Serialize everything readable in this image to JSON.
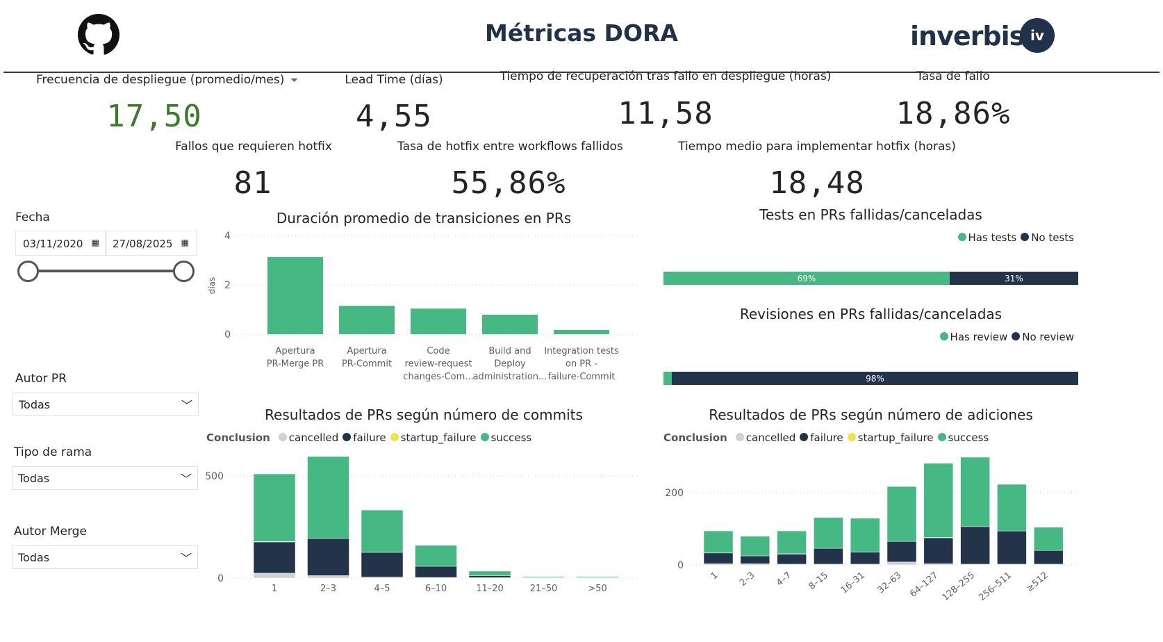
{
  "header": {
    "title": "Métricas DORA",
    "logo_github": "github-logo",
    "logo_brand": "inverbis.",
    "logo_badge": "iv"
  },
  "kpis": [
    {
      "label": "Frecuencia de despliegue (promedio/mes)",
      "value": "17,50",
      "color": "#3a7a2a"
    },
    {
      "label": "Lead Time (días)",
      "value": "4,55"
    },
    {
      "label": "Tiempo de recuperación tras fallo en despliegue (horas)",
      "value": "11,58"
    },
    {
      "label": "Tasa de fallo",
      "value": "18,86%"
    },
    {
      "label": "Fallos que requieren hotfix",
      "value": "81"
    },
    {
      "label": "Tasa de hotfix entre workflows fallidos",
      "value": "55,86%"
    },
    {
      "label": "Tiempo medio para implementar hotfix (horas)",
      "value": "18,48"
    }
  ],
  "filters": {
    "fecha": {
      "label": "Fecha",
      "start": "03/11/2020",
      "end": "27/08/2025"
    },
    "autor_pr": {
      "label": "Autor PR",
      "value": "Todas"
    },
    "tipo_rama": {
      "label": "Tipo de rama",
      "value": "Todas"
    },
    "autor_merge": {
      "label": "Autor Merge",
      "value": "Todas"
    }
  },
  "colors": {
    "success": "#45b884",
    "failure": "#22334a",
    "cancelled": "#cfd2d4",
    "startup_failure": "#f2e24a"
  },
  "chart_data": [
    {
      "type": "bar",
      "title": "Duración promedio de transiciones en PRs",
      "ylabel": "días",
      "ylim": [
        0,
        4
      ],
      "yticks": [
        "0",
        "2",
        "4"
      ],
      "categories": [
        [
          "Apertura",
          "PR-Merge PR"
        ],
        [
          "Apertura",
          "PR-Commit"
        ],
        [
          "Code",
          "review-request",
          "changes-Com..."
        ],
        [
          "Build and",
          "Deploy",
          "administration..."
        ],
        [
          "Integration tests",
          "on PR -",
          "failure-Commit"
        ]
      ],
      "values": [
        3.13,
        1.15,
        1.04,
        0.79,
        0.17
      ]
    },
    {
      "type": "bar",
      "stacked": "100%",
      "title": "Tests en PRs fallidas/canceladas",
      "legend": [
        "Has tests",
        "No tests"
      ],
      "values": [
        69,
        31
      ],
      "labels": [
        "69%",
        "31%"
      ]
    },
    {
      "type": "bar",
      "stacked": "100%",
      "title": "Revisiones en PRs fallidas/canceladas",
      "legend": [
        "Has review",
        "No review"
      ],
      "values": [
        2,
        98
      ],
      "labels": [
        "",
        "98%"
      ]
    },
    {
      "type": "bar",
      "stacked": true,
      "title": "Resultados de PRs según número de commits",
      "legend_title": "Conclusion",
      "ylim": [
        0,
        600
      ],
      "yticks": [
        "0",
        "500"
      ],
      "categories": [
        "1",
        "2–3",
        "4–5",
        "6–10",
        "11–20",
        "21–50",
        ">50"
      ],
      "series": [
        {
          "name": "cancelled",
          "values": [
            24,
            12,
            5,
            3,
            2,
            1,
            1
          ]
        },
        {
          "name": "failure",
          "values": [
            153,
            182,
            121,
            55,
            10,
            1,
            1
          ]
        },
        {
          "name": "startup_failure",
          "values": [
            2,
            0,
            0,
            0,
            0,
            0,
            0
          ]
        },
        {
          "name": "success",
          "values": [
            331,
            401,
            207,
            102,
            22,
            5,
            5
          ]
        }
      ]
    },
    {
      "type": "bar",
      "stacked": true,
      "title": "Resultados de PRs según número de adiciones",
      "legend_title": "Conclusion",
      "ylim": [
        0,
        320
      ],
      "yticks": [
        "0",
        "200"
      ],
      "categories": [
        "1",
        "2–3",
        "4–7",
        "8–15",
        "16–31",
        "32–63",
        "64–127",
        "128–255",
        "256–511",
        "≥512"
      ],
      "series": [
        {
          "name": "cancelled",
          "values": [
            3,
            3,
            2,
            2,
            2,
            8,
            3,
            2,
            2,
            2
          ]
        },
        {
          "name": "failure",
          "values": [
            30,
            22,
            28,
            44,
            33,
            57,
            72,
            104,
            92,
            38
          ]
        },
        {
          "name": "startup_failure",
          "values": [
            0,
            0,
            1,
            0,
            0,
            0,
            1,
            0,
            0,
            0
          ]
        },
        {
          "name": "success",
          "values": [
            61,
            54,
            63,
            85,
            94,
            152,
            205,
            192,
            129,
            64
          ]
        }
      ]
    }
  ]
}
